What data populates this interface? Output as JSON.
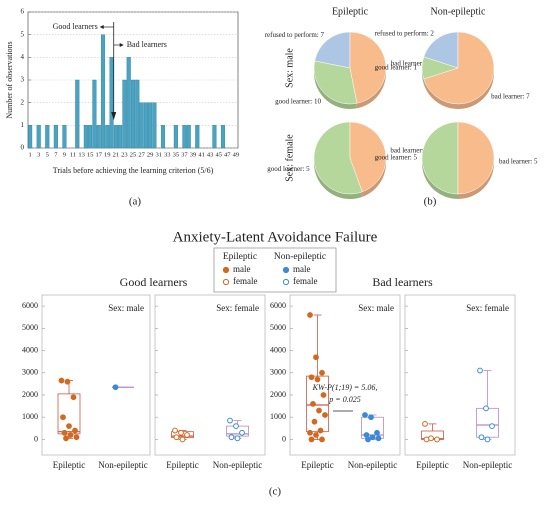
{
  "chart_data": [
    {
      "type": "bar",
      "caption": "(a)",
      "xlabel": "Trials before achieving the learning criterion (5/6)",
      "ylabel": "Number of observations",
      "categories": [
        1,
        null,
        3,
        null,
        5,
        null,
        7,
        null,
        9,
        null,
        11,
        null,
        13,
        null,
        15,
        null,
        17,
        null,
        19,
        null,
        21,
        null,
        23,
        null,
        25,
        null,
        27,
        null,
        29,
        null,
        31,
        null,
        33,
        null,
        35,
        null,
        37,
        null,
        39,
        null,
        41,
        null,
        43,
        null,
        45,
        null,
        47,
        null,
        49
      ],
      "values": [
        1,
        0,
        1,
        0,
        1,
        0,
        1,
        0,
        1,
        0,
        0,
        3,
        0,
        1,
        1,
        3,
        1,
        5,
        1,
        4,
        1,
        1,
        3,
        4,
        3,
        3,
        2,
        2,
        2,
        2,
        0,
        1,
        0,
        0,
        1,
        0,
        1,
        1,
        0,
        1,
        0,
        0,
        0,
        1,
        0,
        1,
        0,
        0,
        0
      ],
      "color": "#4aa3c2",
      "ylim": [
        0,
        6
      ],
      "yticks": [
        0,
        1,
        2,
        3,
        4,
        5,
        6
      ],
      "grid": true,
      "annotations": [
        "Good learners",
        "Bad learners"
      ]
    },
    {
      "type": "pie",
      "caption": "(b)",
      "columns": [
        "Epileptic",
        "Non-epileptic"
      ],
      "rows": [
        "Sex: male",
        "Sex: female"
      ],
      "pies": [
        [
          {
            "values": [
              7,
              10,
              15
            ],
            "value_labels": [
              "refused to perform: 7",
              "good learner: 10",
              "bad learner: 15"
            ],
            "colors": [
              "#adc6e3",
              "#b6d79b",
              "#f7bb8c"
            ]
          },
          {
            "values": [
              2,
              1,
              7
            ],
            "value_labels": [
              "refused to perform: 2",
              "good learner: 1",
              "bad learner: 7"
            ],
            "colors": [
              "#adc6e3",
              "#b6d79b",
              "#f7bb8c"
            ]
          }
        ],
        [
          {
            "values": [
              5,
              4
            ],
            "value_labels": [
              "good learner: 5",
              "bad learner: 4"
            ],
            "colors": [
              "#b6d79b",
              "#f7bb8c"
            ]
          },
          {
            "values": [
              5,
              5
            ],
            "value_labels": [
              "good learner: 5",
              "bad learner: 5"
            ],
            "colors": [
              "#b6d79b",
              "#f7bb8c"
            ]
          }
        ]
      ]
    },
    {
      "type": "box",
      "caption": "(c)",
      "title": "Anxiety-Latent Avoidance Failure",
      "categories": [
        "Epileptic",
        "Non-epileptic"
      ],
      "series": [
        {
          "name": "Epileptic",
          "box_color": "#c9574a",
          "point_color": "#d2691e"
        },
        {
          "name": "Non-epileptic",
          "box_color": "#b48bc9",
          "point_color": "#3b8ad9"
        }
      ],
      "sexes": [
        "male",
        "female"
      ],
      "markers": [
        "filled",
        "hollow"
      ],
      "ylim": [
        -700,
        6500
      ],
      "yticks": [
        0,
        1000,
        2000,
        3000,
        4000,
        5000,
        6000
      ],
      "panels": [
        {
          "title": "Good learners",
          "subplots": [
            {
              "label": "Sex: male",
              "groups": [
                {
                  "low": 50,
                  "q1": 250,
                  "median": 350,
                  "q3": 2050,
                  "high": 2650,
                  "points": [
                    2650,
                    2600,
                    1900,
                    1000,
                    600,
                    400,
                    300,
                    200,
                    100,
                    50
                  ]
                },
                {
                  "low": 2350,
                  "q1": 2350,
                  "median": 2350,
                  "q3": 2350,
                  "high": 2350,
                  "points": [
                    2350
                  ]
                }
              ]
            },
            {
              "label": "Sex: female",
              "groups": [
                {
                  "low": 0,
                  "q1": 80,
                  "median": 150,
                  "q3": 350,
                  "high": 400,
                  "points": [
                    400,
                    300,
                    200,
                    100,
                    0
                  ]
                },
                {
                  "low": 50,
                  "q1": 150,
                  "median": 250,
                  "q3": 600,
                  "high": 850,
                  "points": [
                    850,
                    600,
                    300,
                    100,
                    50
                  ]
                }
              ]
            }
          ]
        },
        {
          "title": "Bad learners",
          "subplots": [
            {
              "label": "Sex: male",
              "annotation": [
                "KW-P(1;19) = 5.06,",
                "p = 0.025"
              ],
              "groups": [
                {
                  "low": 0,
                  "q1": 350,
                  "median": 1550,
                  "q3": 2850,
                  "high": 5600,
                  "points": [
                    5600,
                    3700,
                    3000,
                    2800,
                    2700,
                    2000,
                    1600,
                    1300,
                    1100,
                    800,
                    400,
                    300,
                    200,
                    0,
                    0
                  ]
                },
                {
                  "low": 0,
                  "q1": 50,
                  "median": 200,
                  "q3": 1000,
                  "high": 1100,
                  "points": [
                    1100,
                    1000,
                    300,
                    200,
                    100,
                    50,
                    0
                  ]
                }
              ]
            },
            {
              "label": "Sex: female",
              "groups": [
                {
                  "low": 0,
                  "q1": 0,
                  "median": 30,
                  "q3": 380,
                  "high": 700,
                  "points": [
                    700,
                    50,
                    0,
                    0
                  ]
                },
                {
                  "low": 0,
                  "q1": 100,
                  "median": 650,
                  "q3": 1400,
                  "high": 3100,
                  "points": [
                    3100,
                    1400,
                    600,
                    100,
                    0
                  ]
                }
              ]
            }
          ]
        }
      ]
    }
  ]
}
